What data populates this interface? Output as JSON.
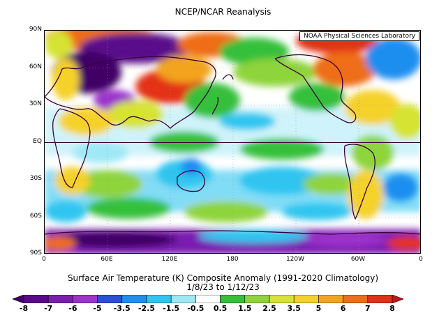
{
  "header": {
    "title": "NCEP/NCAR Reanalysis"
  },
  "map": {
    "source_label": "NOAA Physical Sciences Laboratory",
    "lat_ticks": [
      "90N",
      "60N",
      "30N",
      "EQ",
      "30S",
      "60S",
      "90S"
    ],
    "lon_ticks": [
      "0",
      "60E",
      "120E",
      "180",
      "120W",
      "60W",
      "0"
    ]
  },
  "caption": {
    "line1": "Surface Air Temperature (K) Composite Anomaly (1991-2020 Climatology)",
    "line2": "1/8/23  to 1/12/23"
  },
  "colorbar": {
    "labels": [
      "-8",
      "-7",
      "-6",
      "-5",
      "-3.5",
      "-2.5",
      "-1.5",
      "-0.5",
      "0.5",
      "1.5",
      "2.5",
      "3.5",
      "5",
      "6",
      "7",
      "8"
    ],
    "colors": [
      "#3f0066",
      "#5a0a8a",
      "#7a1fb0",
      "#9b33cc",
      "#2b4fd8",
      "#1e8ef0",
      "#2ec5f0",
      "#9fe8f5",
      "#ffffff",
      "#36c03a",
      "#8ed43a",
      "#d6e332",
      "#f5d22a",
      "#f3a41e",
      "#ee6d19",
      "#e33018",
      "#c61313"
    ]
  }
}
